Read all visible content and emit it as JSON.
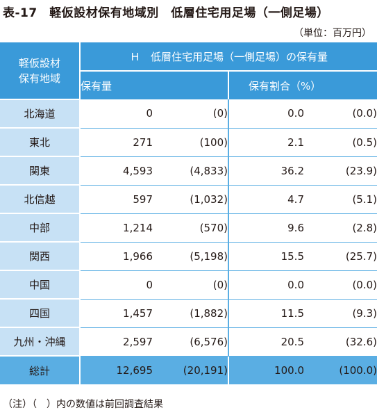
{
  "title": "表‐17　軽仮設材保有地域別　低層住宅用足場（一側足場）",
  "unit": "（単位：百万円）",
  "header": {
    "corner_line1": "軽仮設材",
    "corner_line2": "保有地域",
    "group": "Ｈ　低層住宅用足場（一側足場）の保有量",
    "col_holdings": "保有量",
    "col_ratio": "保有割合（%）"
  },
  "rows": [
    {
      "region": "北海道",
      "amount": "0",
      "amount_prev": "(0)",
      "ratio": "0.0",
      "ratio_prev": "(0.0)"
    },
    {
      "region": "東北",
      "amount": "271",
      "amount_prev": "(100)",
      "ratio": "2.1",
      "ratio_prev": "(0.5)"
    },
    {
      "region": "関東",
      "amount": "4,593",
      "amount_prev": "(4,833)",
      "ratio": "36.2",
      "ratio_prev": "(23.9)"
    },
    {
      "region": "北信越",
      "amount": "597",
      "amount_prev": "(1,032)",
      "ratio": "4.7",
      "ratio_prev": "(5.1)"
    },
    {
      "region": "中部",
      "amount": "1,214",
      "amount_prev": "(570)",
      "ratio": "9.6",
      "ratio_prev": "(2.8)"
    },
    {
      "region": "関西",
      "amount": "1,966",
      "amount_prev": "(5,198)",
      "ratio": "15.5",
      "ratio_prev": "(25.7)"
    },
    {
      "region": "中国",
      "amount": "0",
      "amount_prev": "(0)",
      "ratio": "0.0",
      "ratio_prev": "(0.0)"
    },
    {
      "region": "四国",
      "amount": "1,457",
      "amount_prev": "(1,882)",
      "ratio": "11.5",
      "ratio_prev": "(9.3)"
    },
    {
      "region": "九州・沖縄",
      "amount": "2,597",
      "amount_prev": "(6,576)",
      "ratio": "20.5",
      "ratio_prev": "(32.6)"
    }
  ],
  "total": {
    "region": "総計",
    "amount": "12,695",
    "amount_prev": "(20,191)",
    "ratio": "100.0",
    "ratio_prev": "(100.0)"
  },
  "note": "（注）（　）内の数値は前回調査結果",
  "colors": {
    "header_blue": "#3a9ad9",
    "region_light_blue": "#c7e1f5",
    "total_blue": "#5aaee3"
  }
}
